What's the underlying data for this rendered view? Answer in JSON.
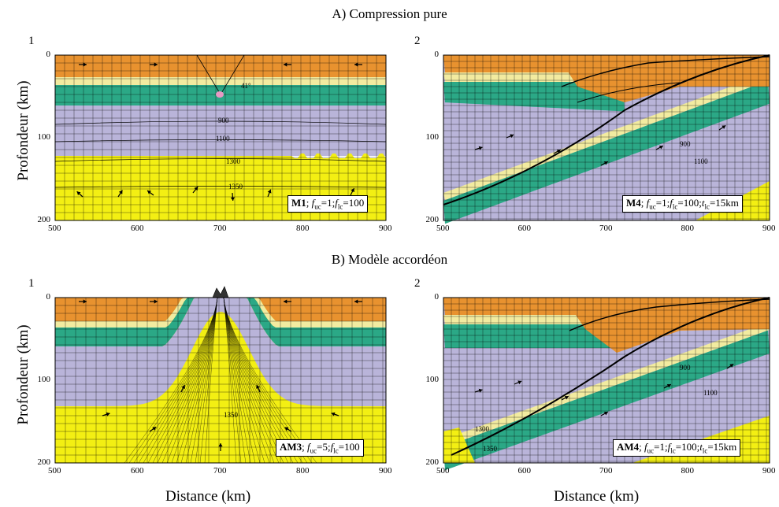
{
  "titles": {
    "a": "A) Compression pure",
    "b": "B) Modèle accordéon"
  },
  "axis": {
    "ylabel": "Profondeur (km)",
    "xlabel": "Distance (km)",
    "xticks": [
      "500",
      "600",
      "700",
      "800",
      "900"
    ],
    "yticks": [
      "0",
      "100",
      "200"
    ]
  },
  "colors": {
    "upper_crust": "#e8922f",
    "mid_crust": "#f2eba0",
    "lower_crust_green": "#2ba886",
    "mantle_lavender": "#b9b4d9",
    "asthenosphere_yellow": "#f3ef13",
    "melt_pink": "#e899c4"
  },
  "panels": [
    {
      "id": "a1",
      "num": "1",
      "label": "M1; f_uc=1; f_lc=100",
      "label_html": [
        "M1",
        "; f",
        "uc",
        "=1;f",
        "lc",
        "=100"
      ],
      "isotherms": [
        "41°",
        "900",
        "1100",
        "1300",
        "1350"
      ]
    },
    {
      "id": "a2",
      "num": "2",
      "label_html": [
        "M4",
        "; f",
        "uc",
        "=1;f",
        "lc",
        "=100;t",
        "lc",
        "=15km"
      ],
      "isotherms": [
        "900",
        "1100"
      ]
    },
    {
      "id": "b1",
      "num": "1",
      "label_html": [
        "AM3",
        "; f",
        "uc",
        "=5;f",
        "lc",
        "=100"
      ],
      "isotherms": [
        "1350"
      ]
    },
    {
      "id": "b2",
      "num": "2",
      "label_html": [
        "AM4",
        "; f",
        "uc",
        "=1;f",
        "lc",
        "=100;t",
        "lc",
        "=15km"
      ],
      "isotherms": [
        "900",
        "1100",
        "1300",
        "1350"
      ]
    }
  ]
}
